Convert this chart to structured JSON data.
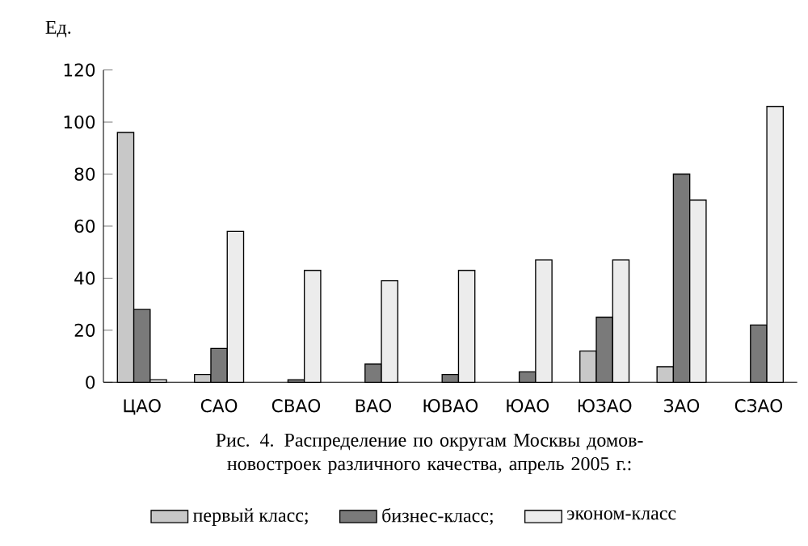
{
  "chart_data": {
    "type": "bar",
    "title": "Рис. 4. Распределение по округам Москвы домов-новостроек различного качества, апрель 2005 г.:",
    "ylabel": "Ед.",
    "categories": [
      "ЦАО",
      "САО",
      "СВАО",
      "ВАО",
      "ЮВАО",
      "ЮАО",
      "ЮЗАО",
      "ЗАО",
      "СЗАО"
    ],
    "series": [
      {
        "name": "первый класс;",
        "color": "#c8c8c8",
        "values": [
          96,
          3,
          null,
          null,
          null,
          null,
          12,
          6,
          null
        ]
      },
      {
        "name": "бизнес-класс;",
        "color": "#7a7a7a",
        "values": [
          28,
          13,
          1,
          7,
          3,
          4,
          25,
          80,
          22
        ]
      },
      {
        "name": "эконом-класс",
        "color": "#ececec",
        "values": [
          1,
          58,
          43,
          39,
          43,
          47,
          47,
          70,
          106
        ]
      }
    ],
    "ylim": [
      0,
      120
    ],
    "yticks": [
      0,
      20,
      40,
      60,
      80,
      100,
      120
    ],
    "grid": false,
    "legend": "bottom"
  }
}
